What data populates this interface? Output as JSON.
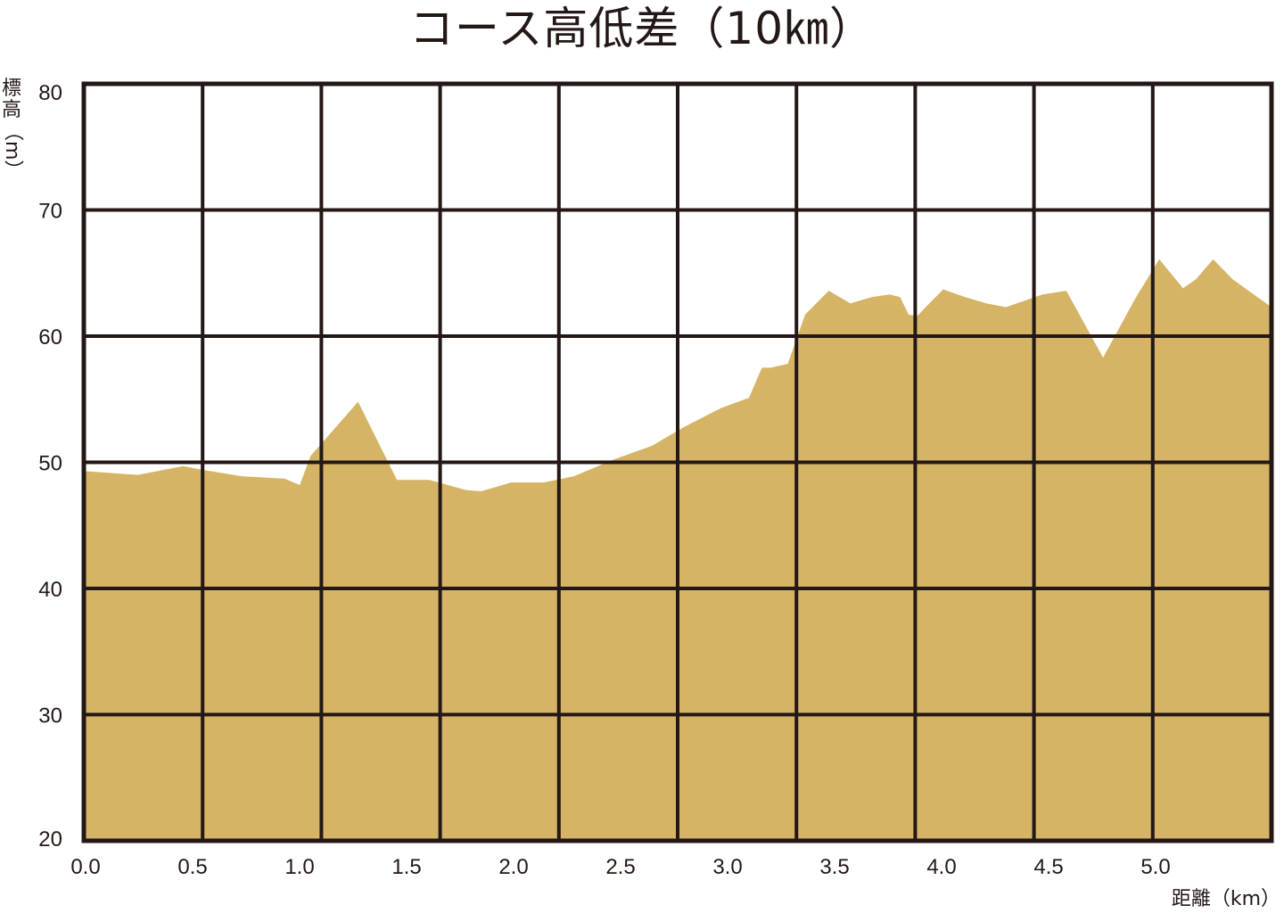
{
  "chart_data": {
    "type": "area",
    "title": "コース高低差（10㎞）",
    "ylabel": {
      "line1": "標",
      "line2": "高",
      "line3": "（m）"
    },
    "xlabel": "距離（km）",
    "ylim": [
      20,
      80
    ],
    "y_ticks": [
      "20",
      "30",
      "40",
      "50",
      "60",
      "70",
      "80"
    ],
    "x_tick_labels": [
      "0.0",
      "0.5",
      "1.0",
      "1.5",
      "2.0",
      "2.5",
      "3.0",
      "3.5",
      "4.0",
      "4.5",
      "5.0"
    ],
    "xlim": [
      0.0,
      5.5
    ],
    "grid": true,
    "fill_color": "#d5b465",
    "grid_color": "#231815",
    "series": [
      {
        "x": [
          0.0,
          0.25,
          0.46,
          0.55,
          0.73,
          0.93,
          1.0,
          1.05,
          1.27,
          1.45,
          1.6,
          1.77,
          1.84,
          1.98,
          2.13,
          2.27,
          2.45,
          2.63,
          2.78,
          2.95,
          3.08,
          3.14,
          3.18,
          3.26,
          3.34,
          3.45,
          3.55,
          3.65,
          3.73,
          3.78,
          3.82,
          3.86,
          3.91,
          3.98,
          4.08,
          4.18,
          4.27,
          4.44,
          4.55,
          4.72,
          4.87,
          4.98,
          5.09,
          5.15,
          5.23,
          5.32,
          5.5
        ],
        "y": [
          49.3,
          49.0,
          49.7,
          49.4,
          48.9,
          48.7,
          48.2,
          50.5,
          54.8,
          48.6,
          48.6,
          47.8,
          47.7,
          48.4,
          48.4,
          48.9,
          50.2,
          51.3,
          52.8,
          54.3,
          55.1,
          57.5,
          57.5,
          57.8,
          61.7,
          63.6,
          62.6,
          63.1,
          63.3,
          63.1,
          61.7,
          61.6,
          62.5,
          63.7,
          63.1,
          62.6,
          62.3,
          63.3,
          63.6,
          58.3,
          63.0,
          66.1,
          63.8,
          64.5,
          66.1,
          64.5,
          62.3
        ]
      }
    ]
  }
}
